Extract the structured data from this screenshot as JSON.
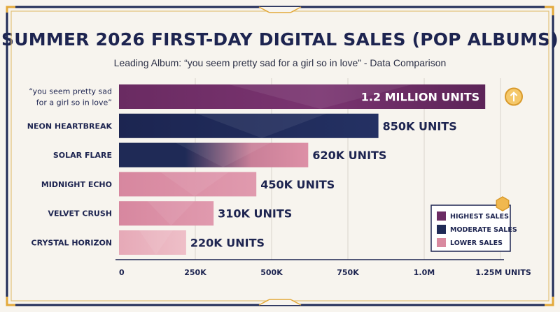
{
  "chart_data": {
    "type": "bar",
    "orientation": "horizontal",
    "title": "SUMMER 2026 FIRST-DAY DIGITAL SALES (POP ALBUMS)",
    "subtitle": "Leading Album: “you seem pretty sad for a girl so in love” - Data Comparison",
    "categories": [
      "“you seem pretty sad for a girl so in love”",
      "NEON HEARTBREAK",
      "SOLAR FLARE",
      "MIDNIGHT ECHO",
      "VELVET CRUSH",
      "CRYSTAL HORIZON"
    ],
    "category_lines": [
      [
        "“you seem pretty sad",
        "for a girl so in love”"
      ],
      [
        "NEON HEARTBREAK"
      ],
      [
        "SOLAR FLARE"
      ],
      [
        "MIDNIGHT ECHO"
      ],
      [
        "VELVET CRUSH"
      ],
      [
        "CRYSTAL HORIZON"
      ]
    ],
    "values": [
      1200000,
      850000,
      620000,
      450000,
      310000,
      220000
    ],
    "value_labels": [
      "1.2 MILLION UNITS",
      "850K UNITS",
      "620K UNITS",
      "450K UNITS",
      "310K UNITS",
      "220K UNITS"
    ],
    "tiers": [
      "highest",
      "moderate",
      "moderate-fade",
      "lower",
      "lower",
      "lowest"
    ],
    "xlim": [
      0,
      1250000
    ],
    "x_ticks": [
      0,
      250000,
      500000,
      750000,
      1000000,
      1250000
    ],
    "x_tick_labels": [
      "0",
      "250K",
      "500K",
      "750K",
      "1.0M",
      "1.25M UNITS"
    ],
    "grid": true,
    "legend": {
      "placement": "bottom-right",
      "items": [
        {
          "label": "HIGHEST SALES",
          "color": "#6b2b63"
        },
        {
          "label": "MODERATE SALES",
          "color": "#1f2a56"
        },
        {
          "label": "LOWER SALES",
          "color": "#d98aa0"
        }
      ]
    },
    "colors": {
      "highest": "#6b2b63",
      "moderate": "#1f2a56",
      "lower": "#d98aa0",
      "lowest": "#e9b2bd",
      "accent_gold": "#e3a93a",
      "text_dark": "#1d2450"
    },
    "icons": [
      "arrow-up-icon",
      "hexagon-badge-icon"
    ]
  }
}
